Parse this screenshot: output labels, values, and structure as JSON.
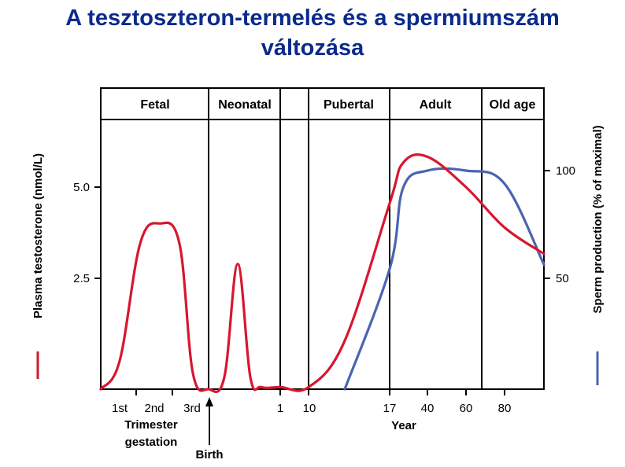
{
  "title_line1": "A tesztoszteron-termelés és a spermiumszám",
  "title_line2": "változása",
  "chart_data": {
    "type": "line",
    "phases": [
      "Fetal",
      "Neonatal",
      "",
      "Pubertal",
      "Adult",
      "Old age"
    ],
    "y_left": {
      "label": "Plasma testosterone (nmol/L)",
      "ticks": [
        "5.0",
        "2.5"
      ],
      "tick_values": [
        5.0,
        2.5
      ]
    },
    "y_right": {
      "label": "Sperm production (% of maximal)",
      "ticks": [
        "100",
        "50"
      ],
      "tick_values": [
        100,
        50
      ]
    },
    "x_ticks": [
      "1st",
      "2nd",
      "3rd",
      "1",
      "10",
      "17",
      "40",
      "60",
      "80"
    ],
    "x_labels": {
      "trimester": "Trimester",
      "gestation": "gestation",
      "year": "Year",
      "birth": "Birth"
    },
    "series": [
      {
        "name": "Plasma testosterone (nmol/L)",
        "color": "#d7172f",
        "axis": "left",
        "points": [
          [
            "0",
            0
          ],
          [
            "1st",
            0.7
          ],
          [
            "1.6",
            3.6
          ],
          [
            "2nd",
            4.1
          ],
          [
            "2.4",
            3.6
          ],
          [
            "3rd",
            0.4
          ],
          [
            "birth",
            0
          ],
          [
            "neonatal-early",
            0.3
          ],
          [
            "neonatal-peak",
            3.1
          ],
          [
            "neonatal-late",
            0.3
          ],
          [
            "neonatal-end",
            0.05
          ],
          [
            "1",
            0.05
          ],
          [
            "10",
            0.05
          ],
          [
            "13",
            1.2
          ],
          [
            "17",
            4.6
          ],
          [
            "25",
            5.6
          ],
          [
            "40",
            5.75
          ],
          [
            "60",
            5.0
          ],
          [
            "80",
            4.0
          ],
          [
            "end",
            3.35
          ]
        ]
      },
      {
        "name": "Sperm production (% of maximal)",
        "color": "#4a64b0",
        "axis": "right",
        "points": [
          [
            "13",
            0
          ],
          [
            "17",
            55
          ],
          [
            "25",
            92
          ],
          [
            "40",
            100
          ],
          [
            "60",
            100
          ],
          [
            "80",
            94
          ],
          [
            "end",
            57
          ]
        ]
      }
    ],
    "legend": "axis labels with colored line markers"
  }
}
